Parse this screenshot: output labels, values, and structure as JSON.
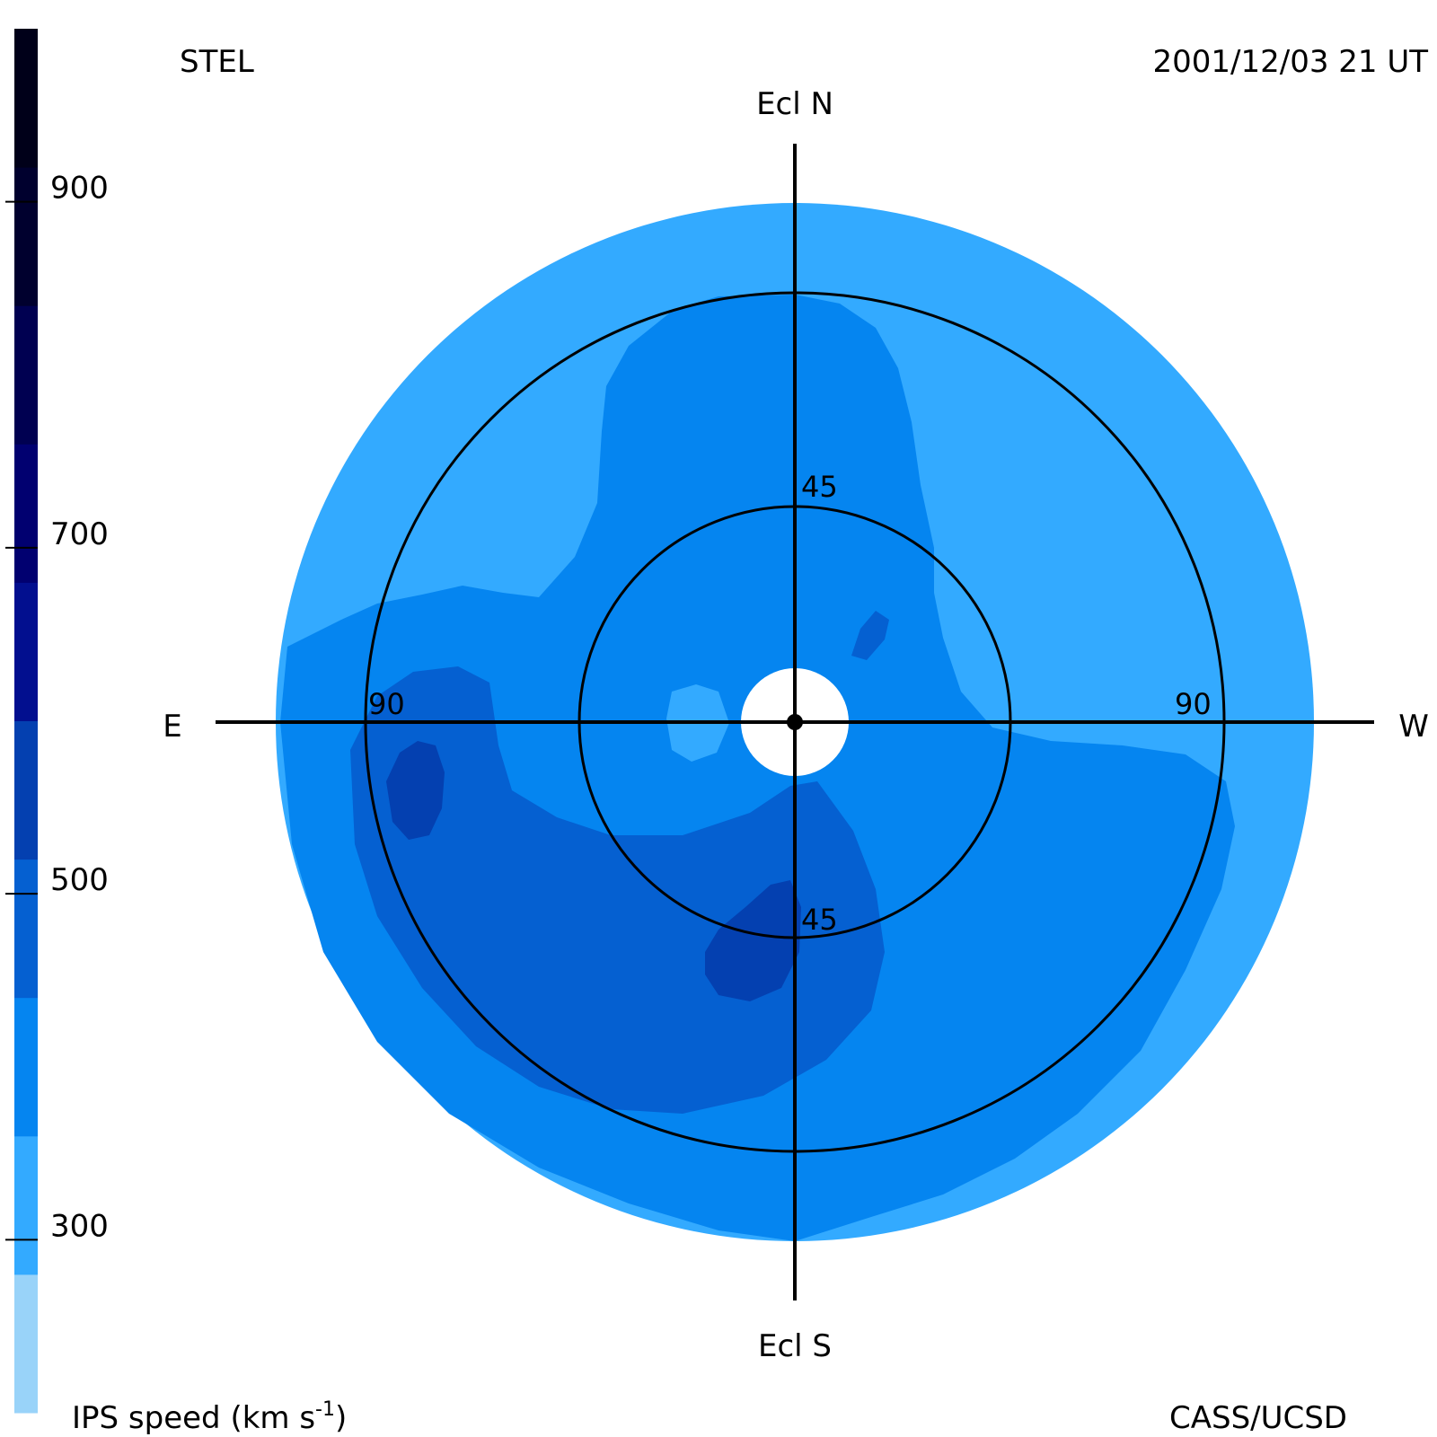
{
  "header": {
    "source": "STEL",
    "timestamp": "2001/12/03 21 UT"
  },
  "footer": {
    "credit": "CASS/UCSD"
  },
  "colorbar": {
    "label_main": "IPS speed (km s",
    "label_sup": "-1",
    "label_end": ")",
    "ticks": [
      "300",
      "500",
      "700",
      "900"
    ],
    "colors": [
      "#99d3f9",
      "#33aaff",
      "#0585f0",
      "#0560d1",
      "#0440b0",
      "#020f8f",
      "#010070",
      "#000051",
      "#00002e",
      "#000019"
    ]
  },
  "directions": {
    "north": "Ecl N",
    "south": "Ecl S",
    "east": "E",
    "west": "W"
  },
  "ring_labels": {
    "inner_top": "45",
    "inner_bottom": "45",
    "outer_left": "90",
    "outer_right": "90"
  },
  "chart_data": {
    "type": "heatmap",
    "projection": "fisheye sky map (elongation from Sun)",
    "quantity": "IPS speed (km s-1)",
    "colorbar_range": [
      200,
      1000
    ],
    "colorbar_ticks": [
      300,
      500,
      700,
      900
    ],
    "elongation_rings": [
      45,
      90
    ],
    "region_colors": {
      "outer": "#33aaff",
      "inner": "#0585f0",
      "mid": "#0560d1",
      "dark": "#0440b0"
    }
  }
}
